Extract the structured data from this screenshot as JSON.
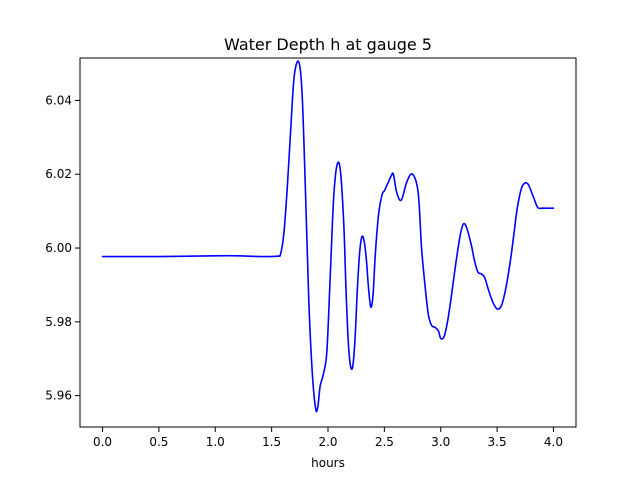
{
  "chart_data": {
    "type": "line",
    "title": "Water Depth h at gauge 5",
    "xlabel": "hours",
    "ylabel": "",
    "xlim": [
      -0.2,
      4.2
    ],
    "ylim": [
      5.9515,
      6.0515
    ],
    "xticks": [
      0.0,
      0.5,
      1.0,
      1.5,
      2.0,
      2.5,
      3.0,
      3.5,
      4.0
    ],
    "xtick_labels": [
      "0.0",
      "0.5",
      "1.0",
      "1.5",
      "2.0",
      "2.5",
      "3.0",
      "3.5",
      "4.0"
    ],
    "yticks": [
      5.96,
      5.98,
      6.0,
      6.02,
      6.04
    ],
    "ytick_labels": [
      "5.96",
      "5.98",
      "6.00",
      "6.02",
      "6.04"
    ],
    "grid": false,
    "colors": {
      "line": "#0000ff",
      "axes": "#000000",
      "background": "#ffffff"
    },
    "series": [
      {
        "x": [
          0.0,
          0.5,
          1.0,
          1.2,
          1.4,
          1.55,
          1.58,
          1.61,
          1.64,
          1.67,
          1.7,
          1.74,
          1.77,
          1.8,
          1.83,
          1.86,
          1.89,
          1.91,
          1.93,
          1.96,
          1.99,
          2.02,
          2.05,
          2.08,
          2.11,
          2.14,
          2.16,
          2.18,
          2.2,
          2.22,
          2.24,
          2.26,
          2.28,
          2.3,
          2.32,
          2.34,
          2.36,
          2.38,
          2.4,
          2.42,
          2.45,
          2.48,
          2.5,
          2.53,
          2.56,
          2.58,
          2.61,
          2.65,
          2.7,
          2.75,
          2.8,
          2.83,
          2.86,
          2.89,
          2.92,
          2.95,
          2.98,
          3.0,
          3.03,
          3.06,
          3.09,
          3.13,
          3.17,
          3.2,
          3.23,
          3.27,
          3.3,
          3.33,
          3.36,
          3.39,
          3.42,
          3.46,
          3.5,
          3.54,
          3.58,
          3.62,
          3.65,
          3.68,
          3.72,
          3.77,
          3.82,
          3.86,
          3.9,
          3.93,
          3.95,
          3.98,
          4.0
        ],
        "y": [
          5.9977,
          5.9977,
          5.9979,
          5.9979,
          5.9977,
          5.9978,
          5.9985,
          6.0045,
          6.017,
          6.0325,
          6.0465,
          6.0505,
          6.042,
          6.0155,
          5.9855,
          5.9665,
          5.9565,
          5.957,
          5.9625,
          5.966,
          5.972,
          5.9925,
          6.0135,
          6.0225,
          6.021,
          6.0065,
          5.9885,
          5.9745,
          5.968,
          5.968,
          5.9755,
          5.9885,
          5.9985,
          6.003,
          6.002,
          5.997,
          5.989,
          5.984,
          5.9875,
          5.9985,
          6.0095,
          6.0145,
          6.0155,
          6.0175,
          6.0195,
          6.02,
          6.015,
          6.013,
          6.018,
          6.02,
          6.015,
          6.0,
          5.99,
          5.982,
          5.979,
          5.9785,
          5.9775,
          5.9755,
          5.976,
          5.98,
          5.986,
          5.995,
          6.003,
          6.0065,
          6.0055,
          6.001,
          5.9965,
          5.9935,
          5.993,
          5.992,
          5.989,
          5.9855,
          5.9835,
          5.9845,
          5.9895,
          5.997,
          6.004,
          6.011,
          6.0165,
          6.0175,
          6.014,
          6.011,
          6.0108,
          6.0108,
          6.0108,
          6.0108,
          6.0108
        ]
      }
    ]
  }
}
